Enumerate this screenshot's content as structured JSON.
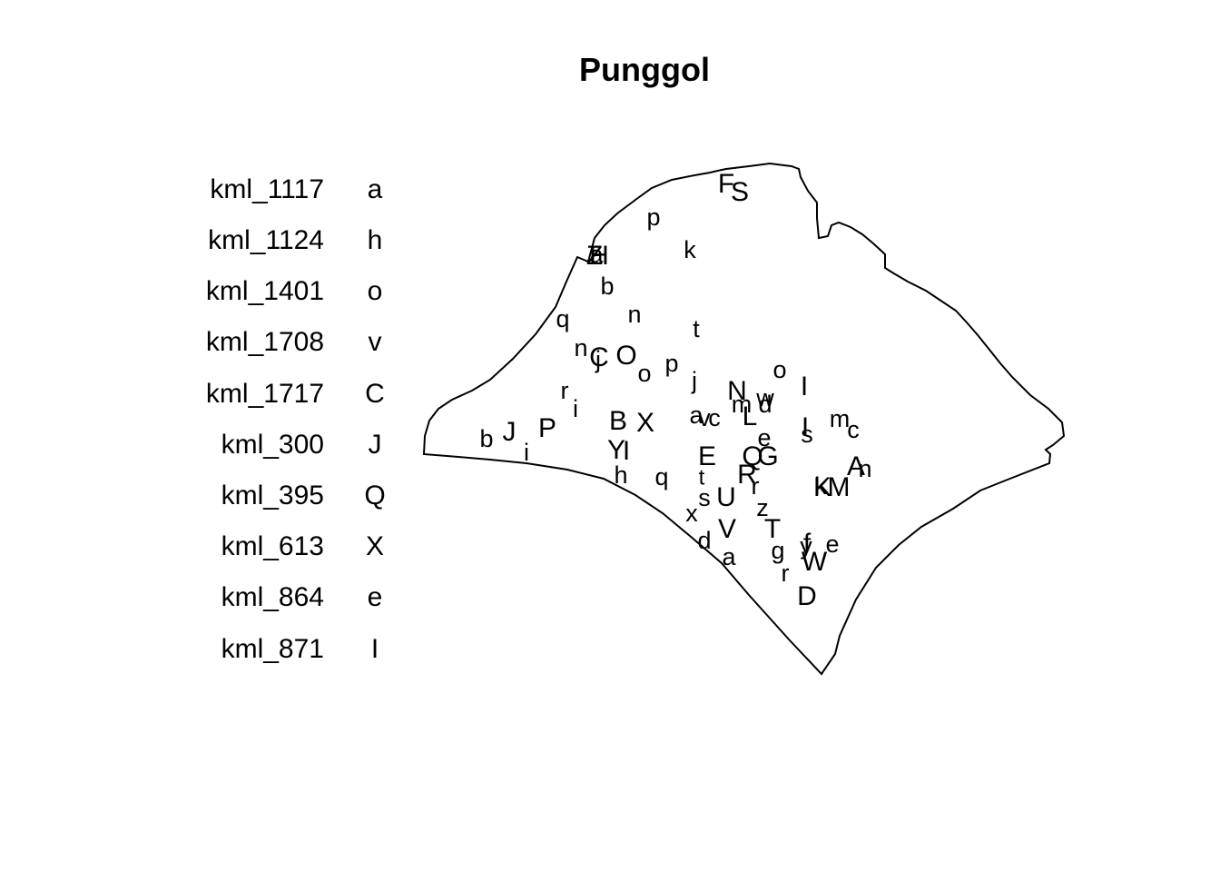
{
  "title": "Punggol",
  "legend": [
    {
      "name": "kml_1117",
      "code": "a"
    },
    {
      "name": "kml_1124",
      "code": "h"
    },
    {
      "name": "kml_1401",
      "code": "o"
    },
    {
      "name": "kml_1708",
      "code": "v"
    },
    {
      "name": "kml_1717",
      "code": "C"
    },
    {
      "name": "kml_300",
      "code": "J"
    },
    {
      "name": "kml_395",
      "code": "Q"
    },
    {
      "name": "kml_613",
      "code": "X"
    },
    {
      "name": "kml_864",
      "code": "e"
    },
    {
      "name": "kml_871",
      "code": "I"
    }
  ],
  "map_labels": [
    "F",
    "S",
    "p",
    "Z",
    "a",
    "H",
    "k",
    "b",
    "n",
    "q",
    "t",
    "n",
    "j",
    "C",
    "O",
    "o",
    "p",
    "r",
    "i",
    "o",
    "I",
    "j",
    "N",
    "w",
    "m",
    "d",
    "L",
    "a",
    "v",
    "c",
    "B",
    "X",
    "J",
    "P",
    "b",
    "i",
    "m",
    "I",
    "s",
    "c",
    "Y",
    "I",
    "E",
    "e",
    "Q",
    "G",
    "k",
    "A",
    "n",
    "K",
    "M",
    "h",
    "q",
    "t",
    "R",
    "r",
    "U",
    "s",
    "x",
    "z",
    "V",
    "T",
    "d",
    "g",
    "y",
    "f",
    "e",
    "a",
    "W",
    "r",
    "D"
  ],
  "colors": {
    "outline": "#000000",
    "text": "#000000",
    "background": "#ffffff"
  }
}
